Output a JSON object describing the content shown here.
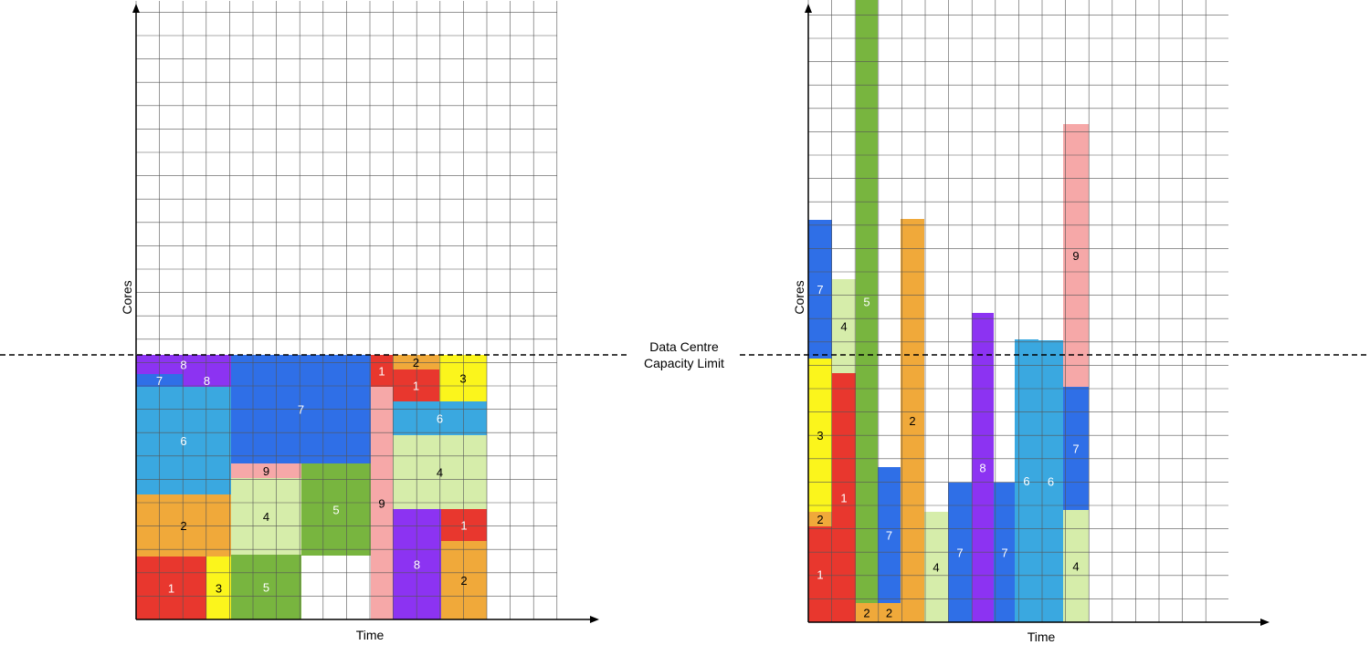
{
  "colors": {
    "job1": "#e8372e",
    "job2": "#f0a93a",
    "job3": "#fbf51c",
    "job4": "#d6edaa",
    "job5": "#78b53f",
    "job6": "#3aa8e0",
    "job7": "#2f6fe7",
    "job8": "#8c33f2",
    "job9": "#f6a8a8",
    "grid": "#555555",
    "axis": "#000000"
  },
  "capacity_limit": {
    "label_line1": "Data Centre",
    "label_line2": "Capacity Limit"
  },
  "left_diagram": {
    "x_axis_label": "Time",
    "y_axis_label": "Cores",
    "blocks": [
      {
        "job": 8,
        "label": "8",
        "text": "#ffffff"
      },
      {
        "job": 7,
        "label": "7",
        "text": "#ffffff"
      },
      {
        "job": 8,
        "label": "8",
        "text": "#ffffff"
      },
      {
        "job": 6,
        "label": "6",
        "text": "#ffffff"
      },
      {
        "job": 2,
        "label": "2",
        "text": "#000000"
      },
      {
        "job": 1,
        "label": "1",
        "text": "#ffffff"
      },
      {
        "job": 3,
        "label": "3",
        "text": "#000000"
      },
      {
        "job": 7,
        "label": "7",
        "text": "#ffffff"
      },
      {
        "job": 9,
        "label": "9",
        "text": "#000000"
      },
      {
        "job": 4,
        "label": "4",
        "text": "#000000"
      },
      {
        "job": 5,
        "label": "5",
        "text": "#ffffff"
      },
      {
        "job": 5,
        "label": "5",
        "text": "#ffffff"
      },
      {
        "job": 1,
        "label": "1",
        "text": "#ffffff"
      },
      {
        "job": 9,
        "label": "9",
        "text": "#000000"
      },
      {
        "job": 2,
        "label": "2",
        "text": "#000000"
      },
      {
        "job": 1,
        "label": "1",
        "text": "#ffffff"
      },
      {
        "job": 3,
        "label": "3",
        "text": "#000000"
      },
      {
        "job": 6,
        "label": "6",
        "text": "#ffffff"
      },
      {
        "job": 4,
        "label": "4",
        "text": "#000000"
      },
      {
        "job": 8,
        "label": "8",
        "text": "#ffffff"
      },
      {
        "job": 1,
        "label": "1",
        "text": "#ffffff"
      },
      {
        "job": 2,
        "label": "2",
        "text": "#000000"
      }
    ]
  },
  "right_diagram": {
    "x_axis_label": "Time",
    "y_axis_label": "Cores",
    "blocks": [
      {
        "job": 7,
        "label": "7",
        "text": "#ffffff"
      },
      {
        "job": 3,
        "label": "3",
        "text": "#000000"
      },
      {
        "job": 2,
        "label": "2",
        "text": "#000000"
      },
      {
        "job": 1,
        "label": "1",
        "text": "#ffffff"
      },
      {
        "job": 4,
        "label": "4",
        "text": "#000000"
      },
      {
        "job": 1,
        "label": "1",
        "text": "#ffffff"
      },
      {
        "job": 5,
        "label": "5",
        "text": "#ffffff"
      },
      {
        "job": 2,
        "label": "2",
        "text": "#000000"
      },
      {
        "job": 7,
        "label": "7",
        "text": "#ffffff"
      },
      {
        "job": 2,
        "label": "2",
        "text": "#000000"
      },
      {
        "job": 2,
        "label": "2",
        "text": "#000000"
      },
      {
        "job": 4,
        "label": "4",
        "text": "#000000"
      },
      {
        "job": 7,
        "label": "7",
        "text": "#ffffff"
      },
      {
        "job": 8,
        "label": "8",
        "text": "#ffffff"
      },
      {
        "job": 7,
        "label": "7",
        "text": "#ffffff"
      },
      {
        "job": 6,
        "label": "6",
        "text": "#ffffff"
      },
      {
        "job": 6,
        "label": "6",
        "text": "#ffffff"
      },
      {
        "job": 9,
        "label": "9",
        "text": "#000000"
      },
      {
        "job": 7,
        "label": "7",
        "text": "#ffffff"
      },
      {
        "job": 4,
        "label": "4",
        "text": "#000000"
      }
    ]
  }
}
